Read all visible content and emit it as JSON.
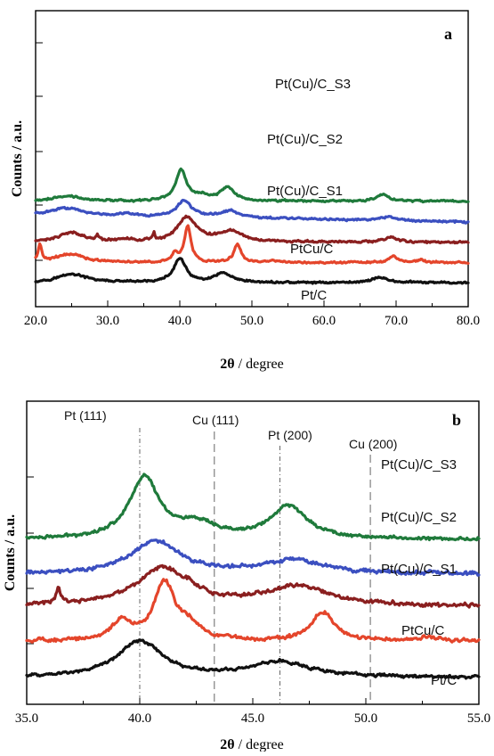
{
  "colors": {
    "Pt/C": "#111111",
    "PtCu/C": "#e4452b",
    "Pt(Cu)/C_S1": "#8a1f1f",
    "Pt(Cu)/C_S2": "#3b4fc0",
    "Pt(Cu)/C_S3": "#1f7a3b"
  },
  "chart_data": [
    {
      "type": "line",
      "panel_label": "a",
      "xlabel_bold": "2θ",
      "xlabel_rest": " / degree",
      "ylabel": "Counts / a.u.",
      "xlim": [
        20,
        80
      ],
      "x_ticks": [
        20,
        30,
        40,
        50,
        60,
        70,
        80
      ],
      "x_tick_labels": [
        "20.0",
        "30.0",
        "40.0",
        "50.0",
        "60.0",
        "70.0",
        "80.0"
      ],
      "y_tick_labels": [],
      "grid": false,
      "legend": "inline labels next to each curve",
      "series": [
        {
          "name": "Pt/C",
          "offset": 0,
          "base": 0.05,
          "noise": 0.08,
          "tilt": 0,
          "peaks": [
            [
              25,
              0.55,
              2.5
            ],
            [
              40,
              1.55,
              1.0
            ],
            [
              46,
              0.6,
              1.3
            ],
            [
              67.7,
              0.35,
              1.3
            ]
          ]
        },
        {
          "name": "PtCu/C",
          "offset": 1.3,
          "base": 0.05,
          "noise": 0.08,
          "tilt": 0,
          "peaks": [
            [
              20.6,
              1.05,
              0.3
            ],
            [
              24.8,
              0.55,
              2.3
            ],
            [
              39.3,
              0.55,
              0.5
            ],
            [
              41.1,
              2.3,
              0.55
            ],
            [
              48.0,
              1.15,
              0.6
            ],
            [
              52.8,
              0.15,
              0.5
            ],
            [
              69.6,
              0.4,
              0.7
            ],
            [
              73.5,
              0.15,
              0.6
            ]
          ]
        },
        {
          "name": "Pt(Cu)/C_S1",
          "offset": 2.6,
          "base": 0.05,
          "noise": 0.09,
          "tilt": 0,
          "peaks": [
            [
              25,
              0.65,
              2.0
            ],
            [
              28.6,
              0.35,
              0.18
            ],
            [
              32.3,
              0.2,
              1.0
            ],
            [
              36.4,
              0.5,
              0.15
            ],
            [
              41.0,
              1.6,
              1.6
            ],
            [
              47.0,
              0.7,
              2.0
            ],
            [
              69.3,
              0.35,
              1.2
            ]
          ]
        },
        {
          "name": "Pt(Cu)/C_S2",
          "offset": 3.9,
          "base": 0.55,
          "noise": 0.08,
          "tilt": -0.008,
          "peaks": [
            [
              24.5,
              0.45,
              2.5
            ],
            [
              32.5,
              0.15,
              1.0
            ],
            [
              40.6,
              1.05,
              1.2
            ],
            [
              47.0,
              0.45,
              1.5
            ],
            [
              69.0,
              0.25,
              1.2
            ]
          ]
        },
        {
          "name": "Pt(Cu)/C_S3",
          "offset": 5.2,
          "base": 0.1,
          "noise": 0.08,
          "tilt": 0,
          "peaks": [
            [
              24.5,
              0.35,
              2.2
            ],
            [
              40.2,
              2.0,
              0.9
            ],
            [
              43.0,
              0.3,
              1.0
            ],
            [
              46.6,
              0.9,
              1.2
            ],
            [
              68.2,
              0.45,
              1.0
            ]
          ]
        }
      ]
    },
    {
      "type": "line",
      "panel_label": "b",
      "xlabel_bold": "2θ",
      "xlabel_rest": " / degree",
      "ylabel": "Counts / a.u.",
      "xlim": [
        35,
        55
      ],
      "x_ticks": [
        35,
        40,
        45,
        50,
        55
      ],
      "x_tick_labels": [
        "35.0",
        "40.0",
        "45.0",
        "50.0",
        "55.0"
      ],
      "y_tick_labels": [],
      "grid": false,
      "legend": "inline labels next to each curve",
      "reference_lines": [
        {
          "label": "Pt (111)",
          "x": 40.0
        },
        {
          "label": "Cu (111)",
          "x": 43.3
        },
        {
          "label": "Pt (200)",
          "x": 46.2
        },
        {
          "label": "Cu (200)",
          "x": 50.2
        }
      ],
      "series": [
        {
          "name": "Pt/C",
          "offset": 0,
          "base": 0.0,
          "noise": 0.05,
          "tilt": 0,
          "peaks": [
            [
              40.0,
              0.95,
              1.2
            ],
            [
              46.2,
              0.4,
              1.6
            ]
          ]
        },
        {
          "name": "PtCu/C",
          "offset": 0.9,
          "base": 0.05,
          "noise": 0.06,
          "tilt": 0,
          "peaks": [
            [
              39.2,
              0.5,
              0.5
            ],
            [
              41.1,
              1.5,
              0.55
            ],
            [
              42.2,
              0.35,
              0.6
            ],
            [
              48.1,
              0.75,
              0.6
            ],
            [
              52.8,
              0.1,
              0.5
            ]
          ]
        },
        {
          "name": "Pt(Cu)/C_S1",
          "offset": 1.8,
          "base": 0.05,
          "noise": 0.06,
          "tilt": 0,
          "peaks": [
            [
              36.4,
              0.4,
              0.12
            ],
            [
              41.0,
              1.0,
              1.4
            ],
            [
              42.2,
              0.1,
              0.2
            ],
            [
              47.0,
              0.5,
              1.8
            ]
          ]
        },
        {
          "name": "Pt(Cu)/C_S2",
          "offset": 2.7,
          "base": 0.0,
          "noise": 0.06,
          "tilt": 0,
          "peaks": [
            [
              40.7,
              0.85,
              1.3
            ],
            [
              46.8,
              0.35,
              1.6
            ]
          ]
        },
        {
          "name": "Pt(Cu)/C_S3",
          "offset": 3.6,
          "base": 0.0,
          "noise": 0.05,
          "tilt": 0,
          "peaks": [
            [
              40.2,
              1.6,
              0.8
            ],
            [
              42.5,
              0.35,
              1.0
            ],
            [
              46.6,
              0.85,
              1.0
            ]
          ]
        }
      ]
    }
  ]
}
